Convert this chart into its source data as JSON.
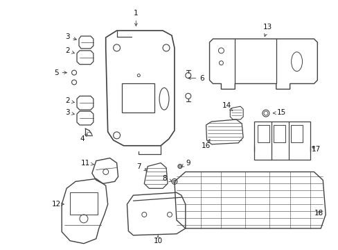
{
  "bg_color": "#ffffff",
  "fig_width": 4.89,
  "fig_height": 3.6,
  "dpi": 100,
  "ec": "#404040",
  "lw": 0.9
}
